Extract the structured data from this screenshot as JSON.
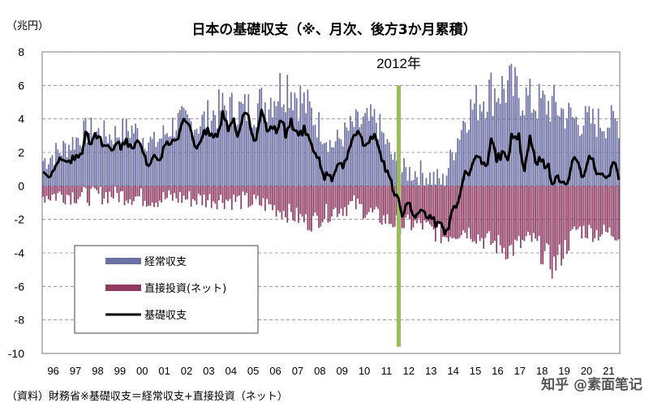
{
  "chart_data": {
    "type": "bar",
    "title": "日本の基礎収支（※、月次、後方3か月累積）",
    "unit_label": "（兆円）",
    "ylim": [
      -10,
      8
    ],
    "yticks": [
      8,
      6,
      4,
      2,
      0,
      -2,
      -4,
      -6,
      -8,
      -10
    ],
    "grid": true,
    "legend_placement": "bottom-left",
    "x_categories": [
      "96",
      "97",
      "98",
      "99",
      "00",
      "01",
      "02",
      "03",
      "04",
      "05",
      "06",
      "07",
      "08",
      "09",
      "10",
      "11",
      "12",
      "13",
      "14",
      "15",
      "16",
      "17",
      "18",
      "19",
      "20",
      "21"
    ],
    "marker": {
      "label": "2012年",
      "year_index": 16,
      "color": "#9BBB59"
    },
    "series": [
      {
        "name": "経常収支",
        "kind": "bar",
        "color": "#6B6FA3",
        "annual_values": [
          1.5,
          2.3,
          3.3,
          3.0,
          3.4,
          2.5,
          3.8,
          3.7,
          4.6,
          4.5,
          5.0,
          6.2,
          4.5,
          2.4,
          3.6,
          3.9,
          0.9,
          0.8,
          0.2,
          4.2,
          5.6,
          5.9,
          5.0,
          4.8,
          3.9,
          3.8
        ]
      },
      {
        "name": "直接投資(ネット)",
        "kind": "bar",
        "color": "#8E3A63",
        "annual_values": [
          -0.6,
          -0.5,
          -0.6,
          -0.5,
          -0.6,
          -0.8,
          -0.7,
          -0.8,
          -0.8,
          -0.9,
          -1.1,
          -1.6,
          -2.2,
          -1.5,
          -1.1,
          -1.8,
          -2.3,
          -2.3,
          -3.0,
          -2.6,
          -3.3,
          -3.8,
          -3.2,
          -4.8,
          -2.6,
          -2.8
        ]
      },
      {
        "name": "基礎収支",
        "kind": "line",
        "color": "#000000",
        "annual_values": [
          0.9,
          2.0,
          3.0,
          2.7,
          3.0,
          1.8,
          3.1,
          3.0,
          3.9,
          3.4,
          3.7,
          4.6,
          2.3,
          -0.2,
          2.4,
          2.5,
          -1.4,
          -1.5,
          -3.4,
          1.6,
          2.1,
          1.6,
          1.7,
          -0.2,
          1.4,
          1.6
        ]
      }
    ]
  },
  "source_note": "（資料）財務省※基礎収支＝経常収支+直接投資（ネット）",
  "watermark": "知乎 @素面笔记"
}
